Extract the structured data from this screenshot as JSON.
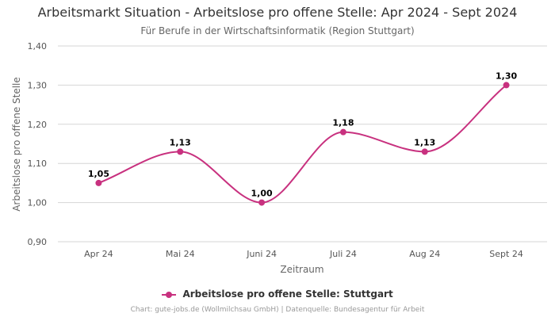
{
  "chart_data": {
    "type": "line",
    "title": "Arbeitsmarkt Situation - Arbeitslose pro offene Stelle: Apr 2024 - Sept 2024",
    "subtitle": "Für Berufe in der Wirtschaftsinformatik (Region Stuttgart)",
    "xlabel": "Zeitraum",
    "ylabel": "Arbeitslose pro offene Stelle",
    "categories": [
      "Apr 24",
      "Mai 24",
      "Juni 24",
      "Juli 24",
      "Aug 24",
      "Sept 24"
    ],
    "series": [
      {
        "name": "Arbeitslose pro offene Stelle: Stuttgart",
        "values": [
          1.05,
          1.13,
          1.0,
          1.18,
          1.13,
          1.3
        ],
        "labels": [
          "1,05",
          "1,13",
          "1,00",
          "1,18",
          "1,13",
          "1,30"
        ],
        "color": "#c8317f"
      }
    ],
    "ylim": [
      0.9,
      1.4
    ],
    "yticks": [
      0.9,
      1.0,
      1.1,
      1.2,
      1.3,
      1.4
    ],
    "ytick_labels": [
      "0,90",
      "1,00",
      "1,10",
      "1,20",
      "1,30",
      "1,40"
    ],
    "grid": true,
    "legend_position": "bottom-center",
    "footer": "Chart: gute-jobs.de (Wollmilchsau GmbH) | Datenquelle: Bundesagentur für Arbeit"
  }
}
